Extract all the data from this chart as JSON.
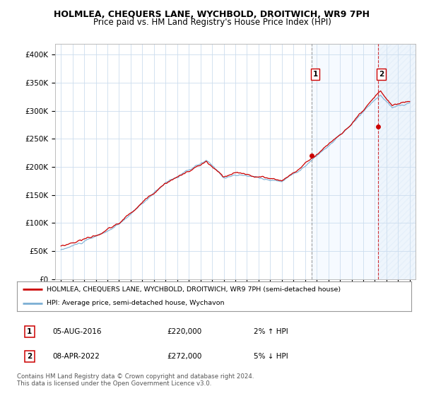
{
  "title": "HOLMLEA, CHEQUERS LANE, WYCHBOLD, DROITWICH, WR9 7PH",
  "subtitle": "Price paid vs. HM Land Registry's House Price Index (HPI)",
  "ylim": [
    0,
    420000
  ],
  "yticks": [
    0,
    50000,
    100000,
    150000,
    200000,
    250000,
    300000,
    350000,
    400000
  ],
  "ytick_labels": [
    "£0",
    "£50K",
    "£100K",
    "£150K",
    "£200K",
    "£250K",
    "£300K",
    "£350K",
    "£400K"
  ],
  "start_year": 1995,
  "end_year": 2025,
  "hpi_color": "#7bafd4",
  "price_color": "#cc0000",
  "sale1_year": 2016.58,
  "sale1_price": 220000,
  "sale2_year": 2022.25,
  "sale2_price": 272000,
  "shade1_color": "#ddeeff",
  "shade2_color": "#ddeeff",
  "vline1_color": "#888888",
  "vline2_color": "#cc0000",
  "legend_line1": "HOLMLEA, CHEQUERS LANE, WYCHBOLD, DROITWICH, WR9 7PH (semi-detached house)",
  "legend_line2": "HPI: Average price, semi-detached house, Wychavon",
  "table_row1": [
    "1",
    "05-AUG-2016",
    "£220,000",
    "2% ↑ HPI"
  ],
  "table_row2": [
    "2",
    "08-APR-2022",
    "£272,000",
    "5% ↓ HPI"
  ],
  "footer": "Contains HM Land Registry data © Crown copyright and database right 2024.\nThis data is licensed under the Open Government Licence v3.0.",
  "background_color": "#ffffff",
  "grid_color": "#ccddee",
  "title_fontsize": 9,
  "subtitle_fontsize": 8.5
}
